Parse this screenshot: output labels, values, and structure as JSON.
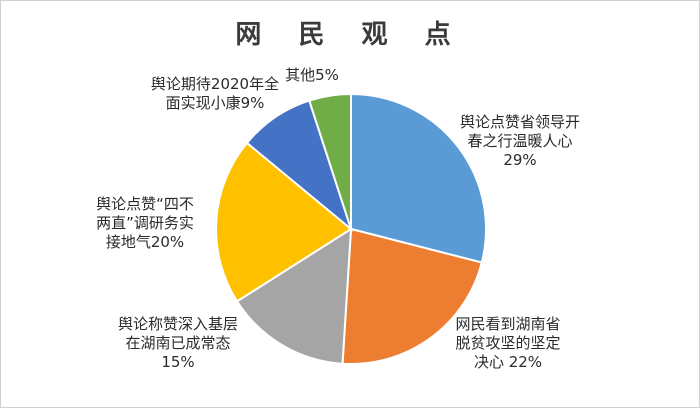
{
  "chart_data": {
    "type": "pie",
    "title": "网 民 观 点",
    "slices": [
      {
        "label": [
          "舆论点赞省领导开",
          "春之行温暖人心",
          "29%"
        ],
        "value": 29,
        "color": "#5B9BD5"
      },
      {
        "label": [
          "网民看到湖南省",
          "脱贫攻坚的坚定",
          "决心 22%"
        ],
        "value": 22,
        "color": "#ED7D31"
      },
      {
        "label": [
          "舆论称赞深入基层",
          "在湖南已成常态",
          "15%"
        ],
        "value": 15,
        "color": "#A5A5A5"
      },
      {
        "label": [
          "舆论点赞“四不",
          "两直”调研务实",
          "接地气20%"
        ],
        "value": 20,
        "color": "#FFC000"
      },
      {
        "label": [
          "舆论期待2020年全",
          "面实现小康9%"
        ],
        "value": 9,
        "color": "#4472C4"
      },
      {
        "label": [
          "其他5%"
        ],
        "value": 5,
        "color": "#70AD47"
      }
    ]
  }
}
